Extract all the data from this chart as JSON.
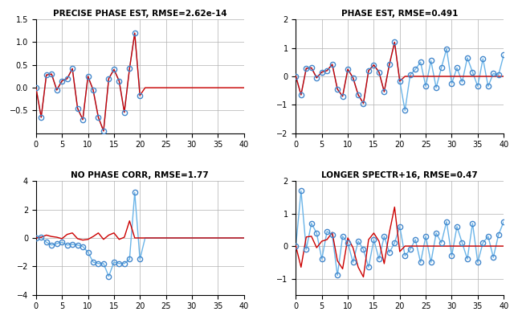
{
  "title1": "PRECISE PHASE EST, RMSE=2.62e-14",
  "title2": "PHASE EST, RMSE=0.491",
  "title3": "NO PHASE CORR, RMSE=1.77",
  "title4": "LONGER SPECTR+16, RMSE=0.47",
  "bg_color": "#ffffff",
  "grid_color": "#b0b0b0",
  "line1_color": "#cc0000",
  "line2_color": "#6ab4e8",
  "marker_color": "#4488cc",
  "n_signal": 20,
  "n_total": 41
}
